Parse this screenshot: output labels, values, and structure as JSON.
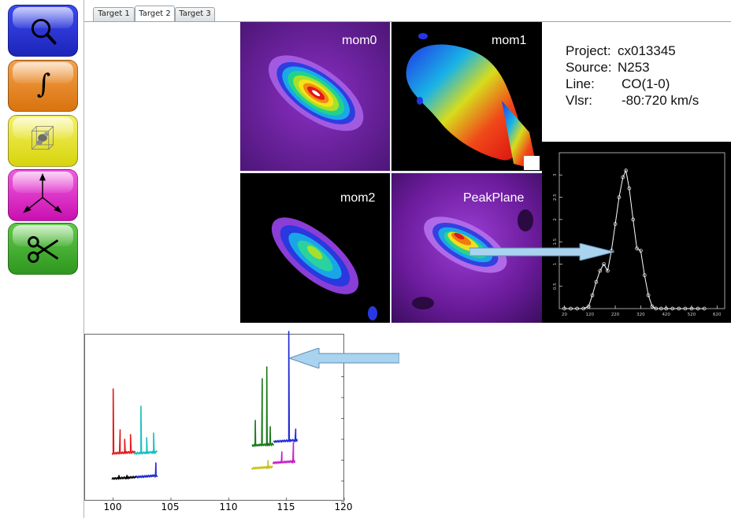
{
  "tabs": [
    {
      "label": "Target 1",
      "active": false
    },
    {
      "label": "Target 2",
      "active": true
    },
    {
      "label": "Target 3",
      "active": false
    }
  ],
  "toolbar": {
    "buttons": [
      {
        "name": "search-button",
        "icon": "magnifier-icon",
        "color": "#2f3fe0"
      },
      {
        "name": "integrate-button",
        "icon": "integral-icon",
        "color": "#e8891e"
      },
      {
        "name": "cube-view-button",
        "icon": "cube-icon",
        "color": "#e3e218"
      },
      {
        "name": "axes-button",
        "icon": "axes-icon",
        "color": "#e01ec8"
      },
      {
        "name": "cut-button",
        "icon": "scissors-icon",
        "color": "#3fae2c"
      }
    ],
    "integral_symbol": "∫"
  },
  "panels": {
    "mom0": "mom0",
    "mom1": "mom1",
    "mom2": "mom2",
    "peak": "PeakPlane"
  },
  "info": {
    "project_key": "Project:",
    "project_value": "cx013345",
    "source_key": "Source:",
    "source_value": "N253",
    "line_key": "Line:",
    "line_value": "CO(1-0)",
    "vlsr_key": "Vlsr:",
    "vlsr_value": "-80:720 km/s"
  },
  "spectrum": {
    "x_ticks": [
      "20",
      "120",
      "220",
      "320",
      "420",
      "520",
      "620"
    ],
    "y_ticks": [
      "0.5",
      "1",
      "1.5",
      "2",
      "2.5",
      "3"
    ],
    "profile": [
      [
        20,
        0
      ],
      [
        45,
        0
      ],
      [
        70,
        0
      ],
      [
        95,
        0
      ],
      [
        115,
        0.05
      ],
      [
        130,
        0.3
      ],
      [
        145,
        0.6
      ],
      [
        160,
        0.85
      ],
      [
        175,
        1.0
      ],
      [
        190,
        0.85
      ],
      [
        205,
        1.3
      ],
      [
        220,
        1.9
      ],
      [
        235,
        2.5
      ],
      [
        250,
        2.95
      ],
      [
        262,
        3.1
      ],
      [
        275,
        2.7
      ],
      [
        290,
        2.0
      ],
      [
        305,
        1.35
      ],
      [
        320,
        1.3
      ],
      [
        335,
        0.75
      ],
      [
        350,
        0.3
      ],
      [
        365,
        0.05
      ],
      [
        380,
        0
      ],
      [
        400,
        0
      ],
      [
        420,
        0
      ],
      [
        445,
        0
      ],
      [
        470,
        0
      ],
      [
        495,
        0
      ],
      [
        520,
        0
      ],
      [
        545,
        0
      ],
      [
        570,
        0
      ]
    ],
    "xlim": [
      0,
      650
    ],
    "ylim": [
      0,
      3.5
    ]
  },
  "lineplot": {
    "x_ticks": [
      "100",
      "105",
      "110",
      "115",
      "120"
    ],
    "xlim": [
      97.5,
      120
    ]
  },
  "colors": {
    "accent": "#a9d3ef",
    "panel_purple": "#6a1b9a"
  }
}
